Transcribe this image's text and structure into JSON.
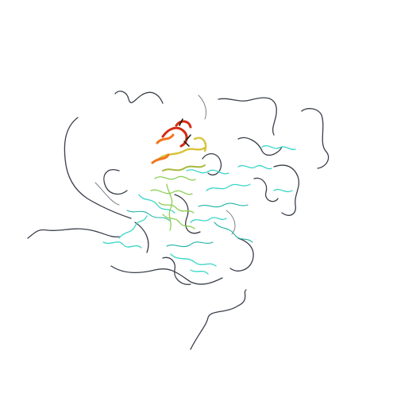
{
  "scene": {
    "subject": "protein-backbone-cartoon",
    "background_color": "#ffffff",
    "palette": {
      "coil": "#3a3f4a",
      "cyan": "#3ad6c8",
      "green": "#8ccf55",
      "yellow": "#d9c23a",
      "orange": "#f0761e",
      "red": "#d62a12"
    }
  }
}
